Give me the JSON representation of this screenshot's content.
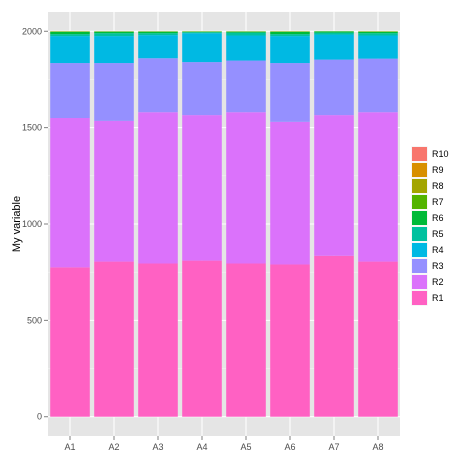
{
  "chart_data": {
    "type": "bar",
    "stacked": true,
    "title": "",
    "xlabel": "",
    "ylabel": "My variable",
    "ylim": [
      0,
      2000
    ],
    "yticks": [
      0,
      500,
      1000,
      1500,
      2000
    ],
    "grid": true,
    "legend_position": "right",
    "categories": [
      "A1",
      "A2",
      "A3",
      "A4",
      "A5",
      "A6",
      "A7",
      "A8"
    ],
    "series": [
      {
        "name": "R1",
        "color": "#FF61C3",
        "values": [
          775,
          805,
          795,
          810,
          795,
          790,
          835,
          805
        ]
      },
      {
        "name": "R2",
        "color": "#DB72FB",
        "values": [
          775,
          730,
          785,
          755,
          785,
          740,
          730,
          775
        ]
      },
      {
        "name": "R3",
        "color": "#9590FF",
        "values": [
          285,
          300,
          280,
          275,
          268,
          305,
          288,
          278
        ]
      },
      {
        "name": "R4",
        "color": "#00B9E3",
        "values": [
          140,
          140,
          120,
          150,
          130,
          140,
          130,
          120
        ]
      },
      {
        "name": "R5",
        "color": "#00C19F",
        "values": [
          10,
          15,
          10,
          5,
          15,
          10,
          10,
          12
        ]
      },
      {
        "name": "R6",
        "color": "#00BA38",
        "values": [
          12,
          8,
          8,
          3,
          5,
          12,
          6,
          7
        ]
      },
      {
        "name": "R7",
        "color": "#53B400",
        "values": [
          2,
          1,
          1,
          1,
          1,
          2,
          1,
          2
        ]
      },
      {
        "name": "R8",
        "color": "#A3A500",
        "values": [
          1,
          1,
          1,
          1,
          1,
          1,
          0,
          1
        ]
      },
      {
        "name": "R9",
        "color": "#D89000",
        "values": [
          0,
          0,
          0,
          0,
          0,
          0,
          0,
          0
        ]
      },
      {
        "name": "R10",
        "color": "#F8766D",
        "values": [
          0,
          0,
          0,
          0,
          0,
          0,
          0,
          0
        ]
      }
    ]
  }
}
